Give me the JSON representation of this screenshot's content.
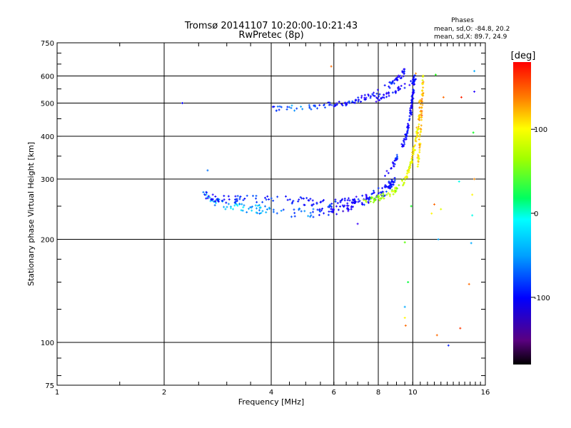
{
  "chart_data": {
    "type": "scatter",
    "title": "Tromsø 20141107 10:20:00-10:21:43",
    "subtitle": "RwPretec (8p)",
    "xlabel": "Frequency [MHz]",
    "ylabel": "Stationary phase Virtual Height [km]",
    "x_scale": "log",
    "y_scale": "log",
    "xlim": [
      1,
      16
    ],
    "ylim": [
      75,
      750
    ],
    "x_ticks": [
      1,
      2,
      4,
      6,
      8,
      10,
      16
    ],
    "y_ticks": [
      75,
      100,
      200,
      300,
      400,
      500,
      600,
      750
    ],
    "grid_x": [
      2,
      4,
      6,
      8,
      10
    ],
    "grid_y": [
      100,
      200,
      300,
      400,
      500,
      600
    ],
    "grid": true,
    "phase_stats": {
      "heading": "Phases",
      "line1": "mean, sd,O:  -84.8, 20.2",
      "line2": "mean, sd,X:  89.7, 24.9"
    },
    "colorbar": {
      "label": "[deg]",
      "range": [
        -180,
        180
      ],
      "ticks": [
        100,
        0,
        -100
      ],
      "tick_labels": [
        "100",
        "0",
        "-100"
      ]
    },
    "traces": [
      {
        "x": [
          2.57,
          2.7,
          2.9,
          3.2,
          3.6,
          4.0,
          4.5,
          5.0,
          5.5,
          6.0,
          6.5,
          7.0,
          7.5,
          8.0,
          8.5,
          8.8
        ],
        "y": [
          278,
          262,
          252,
          248,
          245,
          243,
          240,
          239,
          240,
          243,
          248,
          255,
          262,
          270,
          280,
          288
        ],
        "phase": [
          -60,
          -70,
          -60,
          -55,
          -60,
          -75,
          -80,
          -70,
          -100,
          -120,
          -130,
          -110,
          -110,
          -120,
          -100,
          -110
        ],
        "spread": 0.03,
        "count": 170
      },
      {
        "x": [
          2.6,
          2.8,
          3.0,
          3.3,
          3.7,
          4.2,
          4.7,
          5.2,
          5.8,
          6.3,
          6.8,
          7.3,
          7.8,
          8.3,
          8.7,
          9.0
        ],
        "y": [
          270,
          264,
          262,
          262,
          262,
          262,
          260,
          257,
          255,
          256,
          260,
          265,
          272,
          282,
          292,
          300
        ],
        "phase": [
          -110,
          -115,
          -110,
          -100,
          -90,
          -100,
          -110,
          -100,
          -95,
          -115,
          -120,
          -120,
          -105,
          -110,
          -100,
          -105
        ],
        "spread": 0.025,
        "count": 150
      },
      {
        "x": [
          8.2,
          8.8,
          9.2,
          9.5,
          9.7,
          9.8,
          9.9,
          10.0,
          10.05,
          10.1
        ],
        "y": [
          300,
          330,
          360,
          390,
          420,
          450,
          480,
          520,
          560,
          600
        ],
        "phase": [
          -110,
          -115,
          -100,
          -110,
          -115,
          -105,
          -110,
          -120,
          -115,
          -105
        ],
        "spread": 0.02,
        "count": 110
      },
      {
        "x": [
          7.3,
          7.8,
          8.3,
          8.8,
          9.2,
          9.5,
          9.75,
          9.95,
          10.1,
          10.25,
          10.35,
          10.45,
          10.5
        ],
        "y": [
          258,
          262,
          268,
          275,
          285,
          300,
          320,
          345,
          370,
          400,
          430,
          470,
          520
        ],
        "phase": [
          70,
          75,
          80,
          85,
          90,
          95,
          100,
          105,
          110,
          115,
          120,
          125,
          130
        ],
        "spread": 0.02,
        "count": 140
      },
      {
        "x": [
          10.3,
          10.4,
          10.5,
          10.55,
          10.6,
          10.65,
          10.7
        ],
        "y": [
          320,
          360,
          400,
          440,
          480,
          530,
          600
        ],
        "phase": [
          110,
          120,
          130,
          135,
          140,
          125,
          115
        ],
        "spread": 0.02,
        "count": 60
      },
      {
        "x": [
          4.0,
          4.5,
          5.0,
          5.5,
          6.0,
          6.3,
          6.6,
          7.0,
          7.4,
          7.8,
          8.2,
          8.6,
          9.0,
          9.3,
          9.6
        ],
        "y": [
          478,
          483,
          486,
          490,
          494,
          497,
          500,
          510,
          520,
          530,
          545,
          565,
          585,
          605,
          625
        ],
        "phase": [
          -95,
          -80,
          -70,
          -100,
          -110,
          -120,
          -100,
          -115,
          -120,
          -110,
          -105,
          -100,
          -115,
          -120,
          -110
        ],
        "spread": 0.02,
        "count": 120
      },
      {
        "x": [
          7.8,
          8.3,
          8.8,
          9.3,
          9.8,
          10.3
        ],
        "y": [
          510,
          525,
          540,
          555,
          570,
          590
        ],
        "phase": [
          -125,
          -120,
          -110,
          -115,
          -120,
          -110
        ],
        "spread": 0.015,
        "count": 40
      }
    ],
    "scattered_points": [
      {
        "x": 2.25,
        "y": 500,
        "phase": -110
      },
      {
        "x": 2.65,
        "y": 318,
        "phase": -75
      },
      {
        "x": 5.9,
        "y": 640,
        "phase": 150
      },
      {
        "x": 7.0,
        "y": 222,
        "phase": -140
      },
      {
        "x": 9.5,
        "y": 196,
        "phase": 60
      },
      {
        "x": 9.5,
        "y": 118,
        "phase": 110
      },
      {
        "x": 9.55,
        "y": 112,
        "phase": 150
      },
      {
        "x": 9.5,
        "y": 127,
        "phase": -60
      },
      {
        "x": 9.9,
        "y": 250,
        "phase": 30
      },
      {
        "x": 10.2,
        "y": 610,
        "phase": 140
      },
      {
        "x": 11.3,
        "y": 238,
        "phase": 110
      },
      {
        "x": 11.5,
        "y": 253,
        "phase": 150
      },
      {
        "x": 11.6,
        "y": 605,
        "phase": 40
      },
      {
        "x": 11.7,
        "y": 105,
        "phase": 150
      },
      {
        "x": 12.0,
        "y": 245,
        "phase": 100
      },
      {
        "x": 12.2,
        "y": 520,
        "phase": 150
      },
      {
        "x": 12.6,
        "y": 98,
        "phase": -100
      },
      {
        "x": 13.5,
        "y": 295,
        "phase": -30
      },
      {
        "x": 13.6,
        "y": 110,
        "phase": 165
      },
      {
        "x": 13.7,
        "y": 520,
        "phase": 170
      },
      {
        "x": 14.4,
        "y": 148,
        "phase": 150
      },
      {
        "x": 14.7,
        "y": 270,
        "phase": 110
      },
      {
        "x": 14.9,
        "y": 620,
        "phase": -60
      },
      {
        "x": 14.8,
        "y": 410,
        "phase": 30
      },
      {
        "x": 14.7,
        "y": 235,
        "phase": -30
      },
      {
        "x": 14.6,
        "y": 195,
        "phase": -60
      },
      {
        "x": 14.9,
        "y": 300,
        "phase": 140
      },
      {
        "x": 14.9,
        "y": 540,
        "phase": -130
      },
      {
        "x": 11.8,
        "y": 200,
        "phase": -60
      },
      {
        "x": 9.7,
        "y": 150,
        "phase": 20
      }
    ]
  }
}
